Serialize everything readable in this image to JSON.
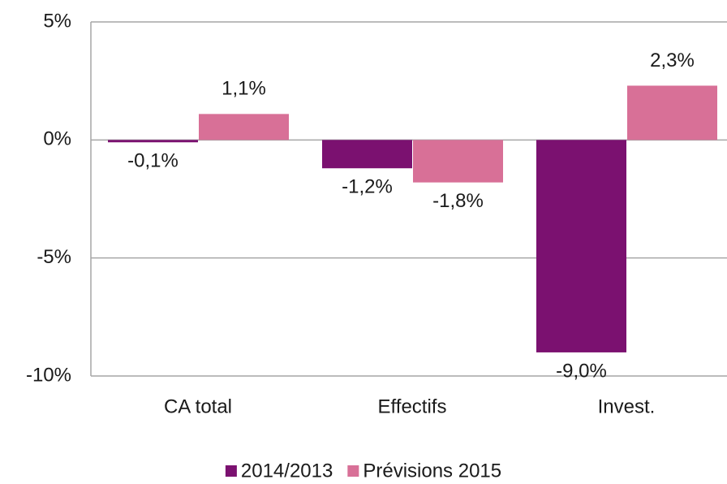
{
  "chart_data": {
    "type": "bar",
    "categories": [
      "CA total",
      "Effectifs",
      "Invest."
    ],
    "series": [
      {
        "name": "2014/2013",
        "color": "#7b1170",
        "values": [
          -0.1,
          -1.2,
          -9.0
        ],
        "value_labels": [
          "-0,1%",
          "-1,2%",
          "-9,0%"
        ]
      },
      {
        "name": "Prévisions 2015",
        "color": "#d87097",
        "values": [
          1.1,
          -1.8,
          2.3
        ],
        "value_labels": [
          "1,1%",
          "-1,8%",
          "2,3%"
        ]
      }
    ],
    "ylim": [
      -10,
      5
    ],
    "yticks": [
      {
        "value": 5,
        "label": "5%"
      },
      {
        "value": 0,
        "label": "0%"
      },
      {
        "value": -5,
        "label": "-5%"
      },
      {
        "value": -10,
        "label": "-10%"
      }
    ],
    "grid": true,
    "legend": "bottom"
  }
}
